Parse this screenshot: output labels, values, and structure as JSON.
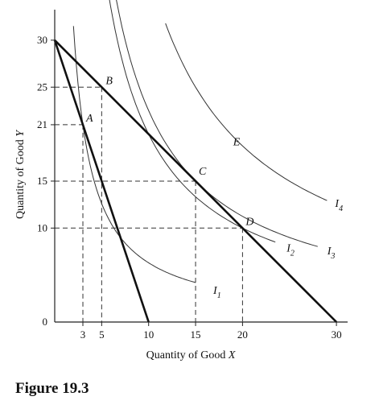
{
  "caption": "Figure 19.3",
  "chart_data": {
    "type": "line",
    "title": "",
    "xlabel": "Quantity of Good X",
    "ylabel": "Quantity of Good Y",
    "xlim": [
      0,
      30
    ],
    "ylim": [
      0,
      30
    ],
    "x_ticks": [
      3,
      5,
      10,
      15,
      20,
      30
    ],
    "x_tick_labels": [
      "3",
      "5",
      "10",
      "15",
      "20",
      "30"
    ],
    "y_ticks": [
      0,
      10,
      15,
      21,
      25,
      30
    ],
    "y_tick_labels": [
      "0",
      "10",
      "15",
      "21",
      "25",
      "30"
    ],
    "budget_lines": [
      {
        "points": [
          [
            0,
            30
          ],
          [
            10,
            0
          ]
        ]
      },
      {
        "points": [
          [
            0,
            30
          ],
          [
            30,
            0
          ]
        ]
      }
    ],
    "indifference_curves": [
      {
        "label_main": "I",
        "label_sub": "1",
        "k": 63,
        "x_range": [
          2.0,
          15.0
        ]
      },
      {
        "label_main": "I",
        "label_sub": "2",
        "k": 200,
        "x_range": [
          4.0,
          23.5
        ]
      },
      {
        "label_main": "I",
        "label_sub": "3",
        "k": 225,
        "x_range": [
          4.2,
          28.0
        ]
      },
      {
        "label_main": "I",
        "label_sub": "4",
        "k": 375,
        "x_range": [
          11.8,
          29.0
        ]
      }
    ],
    "points": [
      {
        "label": "A",
        "x": 3,
        "y": 21
      },
      {
        "label": "B",
        "x": 5,
        "y": 25
      },
      {
        "label": "C",
        "x": 15,
        "y": 15
      },
      {
        "label": "D",
        "x": 20,
        "y": 10
      }
    ],
    "region_labels": [
      {
        "label": "E",
        "x": 19,
        "y": 18.8
      }
    ],
    "grid": false
  }
}
